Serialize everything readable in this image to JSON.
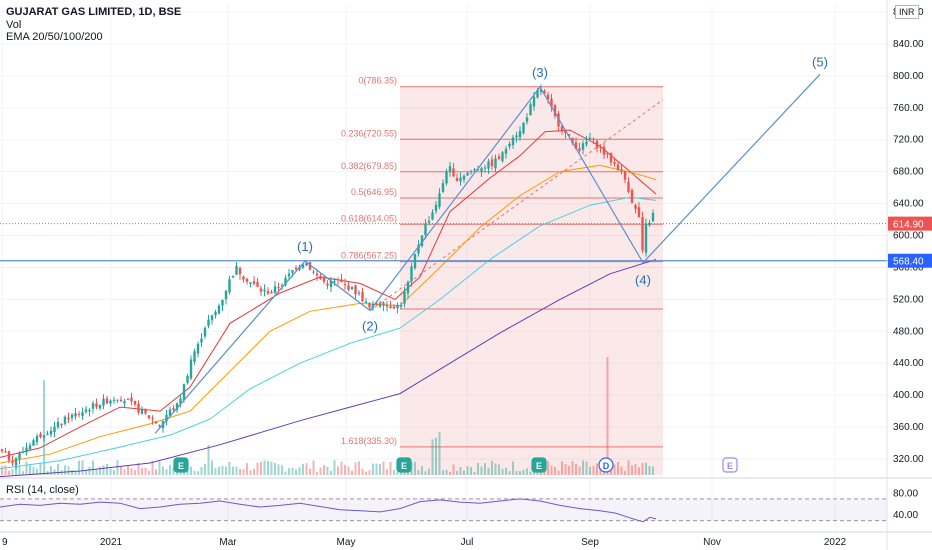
{
  "header": {
    "title": "GUJARAT GAS LIMITED, 1D, BSE",
    "vol": "Vol",
    "ema": "EMA 20/50/100/200",
    "currency": "INR"
  },
  "rsi_label": "RSI (14, close)",
  "colors": {
    "up": "#26a69a",
    "down": "#ef5350",
    "ema20": "#e53935",
    "ema50": "#ff9800",
    "ema100": "#4dd0e1",
    "ema200": "#673ab7",
    "fib": "#e57373",
    "wave": "#5b8fd1",
    "hline": "#5b8fd1",
    "rsi": "#6a5acd"
  },
  "chart_data": {
    "type": "candlestick",
    "ylim": [
      300,
      890
    ],
    "y_ticks": [
      320,
      360,
      400,
      440,
      480,
      520,
      560,
      600,
      640,
      680,
      720,
      760,
      800,
      840,
      880
    ],
    "y_tick_labels": [
      "320.00",
      "360.00",
      "400.00",
      "440.00",
      "480.00",
      "520.00",
      "560.00",
      "600.00",
      "640.00",
      "680.00",
      "720.00",
      "760.00",
      "800.00",
      "840.00",
      "880.00"
    ],
    "x_labels": [
      {
        "label": "9",
        "x": 2
      },
      {
        "label": "2021",
        "x": 111
      },
      {
        "label": "Mar",
        "x": 228
      },
      {
        "label": "May",
        "x": 346
      },
      {
        "label": "Jul",
        "x": 467
      },
      {
        "label": "Sep",
        "x": 590
      },
      {
        "label": "Nov",
        "x": 712
      },
      {
        "label": "2022",
        "x": 835
      }
    ],
    "last_price": {
      "value": 614.9,
      "label": "614.90"
    },
    "level_line": {
      "value": 568.4,
      "label": "568.40"
    },
    "fibonacci": [
      {
        "ratio": "0",
        "price": 786.35,
        "label": "0(786.35)"
      },
      {
        "ratio": "0.236",
        "price": 720.55,
        "label": "0.236(720.55)"
      },
      {
        "ratio": "0.382",
        "price": 679.85,
        "label": "0.382(679.85)"
      },
      {
        "ratio": "0.5",
        "price": 646.95,
        "label": "0.5(646.95)"
      },
      {
        "ratio": "0.618",
        "price": 614.05,
        "label": "0.618(614.05)"
      },
      {
        "ratio": "0.786",
        "price": 567.25,
        "label": "0.786(567.25)"
      },
      {
        "ratio": "1.618",
        "price": 335.3,
        "label": "1.618(335.30)"
      }
    ],
    "fib_extra_line": 508,
    "elliott_waves": [
      {
        "label": "(1)",
        "x": 305,
        "price": 568
      },
      {
        "label": "(2)",
        "x": 370,
        "price": 506
      },
      {
        "label": "(3)",
        "x": 540,
        "price": 786
      },
      {
        "label": "(4)",
        "x": 643,
        "price": 566
      },
      {
        "label": "(5)",
        "x": 820,
        "price": 802
      }
    ],
    "events": [
      {
        "label": "E",
        "x": 181
      },
      {
        "label": "E",
        "x": 404
      },
      {
        "label": "E",
        "x": 539
      },
      {
        "label": "D",
        "x": 606
      },
      {
        "label": "E",
        "x": 730
      }
    ],
    "price_path": [
      [
        0,
        330
      ],
      [
        12,
        318
      ],
      [
        20,
        326
      ],
      [
        30,
        340
      ],
      [
        42,
        352
      ],
      [
        55,
        360
      ],
      [
        68,
        372
      ],
      [
        80,
        378
      ],
      [
        92,
        386
      ],
      [
        104,
        392
      ],
      [
        118,
        398
      ],
      [
        128,
        392
      ],
      [
        140,
        380
      ],
      [
        152,
        370
      ],
      [
        160,
        362
      ],
      [
        168,
        378
      ],
      [
        178,
        388
      ],
      [
        186,
        420
      ],
      [
        192,
        450
      ],
      [
        198,
        462
      ],
      [
        206,
        490
      ],
      [
        214,
        500
      ],
      [
        222,
        520
      ],
      [
        230,
        545
      ],
      [
        236,
        560
      ],
      [
        244,
        548
      ],
      [
        252,
        540
      ],
      [
        262,
        530
      ],
      [
        272,
        530
      ],
      [
        284,
        542
      ],
      [
        295,
        560
      ],
      [
        305,
        568
      ],
      [
        316,
        550
      ],
      [
        326,
        540
      ],
      [
        338,
        542
      ],
      [
        348,
        536
      ],
      [
        360,
        525
      ],
      [
        370,
        508
      ],
      [
        380,
        518
      ],
      [
        390,
        512
      ],
      [
        400,
        512
      ],
      [
        408,
        540
      ],
      [
        416,
        580
      ],
      [
        424,
        610
      ],
      [
        432,
        628
      ],
      [
        440,
        652
      ],
      [
        448,
        690
      ],
      [
        454,
        670
      ],
      [
        462,
        675
      ],
      [
        470,
        680
      ],
      [
        480,
        686
      ],
      [
        492,
        690
      ],
      [
        502,
        700
      ],
      [
        512,
        725
      ],
      [
        520,
        730
      ],
      [
        530,
        760
      ],
      [
        540,
        786
      ],
      [
        548,
        768
      ],
      [
        556,
        745
      ],
      [
        564,
        730
      ],
      [
        572,
        716
      ],
      [
        580,
        708
      ],
      [
        590,
        722
      ],
      [
        598,
        712
      ],
      [
        606,
        700
      ],
      [
        614,
        690
      ],
      [
        622,
        680
      ],
      [
        628,
        660
      ],
      [
        634,
        636
      ],
      [
        640,
        620
      ],
      [
        643,
        570
      ],
      [
        646,
        612
      ],
      [
        652,
        622
      ],
      [
        656,
        640
      ]
    ],
    "ema_series": [
      {
        "name": "EMA 20",
        "color_key": "ema20",
        "points": [
          [
            0,
            322
          ],
          [
            40,
            334
          ],
          [
            80,
            360
          ],
          [
            120,
            385
          ],
          [
            160,
            380
          ],
          [
            190,
            410
          ],
          [
            230,
            490
          ],
          [
            280,
            528
          ],
          [
            320,
            548
          ],
          [
            360,
            540
          ],
          [
            395,
            520
          ],
          [
            420,
            548
          ],
          [
            450,
            630
          ],
          [
            490,
            672
          ],
          [
            520,
            700
          ],
          [
            545,
            730
          ],
          [
            570,
            732
          ],
          [
            600,
            712
          ],
          [
            630,
            680
          ],
          [
            656,
            652
          ]
        ]
      },
      {
        "name": "EMA 50",
        "color_key": "ema50",
        "points": [
          [
            0,
            315
          ],
          [
            50,
            326
          ],
          [
            100,
            348
          ],
          [
            150,
            364
          ],
          [
            190,
            380
          ],
          [
            230,
            430
          ],
          [
            270,
            480
          ],
          [
            310,
            505
          ],
          [
            360,
            515
          ],
          [
            400,
            512
          ],
          [
            440,
            560
          ],
          [
            480,
            610
          ],
          [
            520,
            650
          ],
          [
            560,
            680
          ],
          [
            600,
            688
          ],
          [
            640,
            676
          ],
          [
            656,
            670
          ]
        ]
      },
      {
        "name": "EMA 100",
        "color_key": "ema100",
        "points": [
          [
            0,
            308
          ],
          [
            60,
            318
          ],
          [
            120,
            335
          ],
          [
            170,
            350
          ],
          [
            210,
            370
          ],
          [
            250,
            408
          ],
          [
            300,
            440
          ],
          [
            350,
            465
          ],
          [
            400,
            484
          ],
          [
            440,
            520
          ],
          [
            490,
            570
          ],
          [
            540,
            612
          ],
          [
            590,
            638
          ],
          [
            630,
            648
          ],
          [
            656,
            644
          ]
        ]
      },
      {
        "name": "EMA 200",
        "color_key": "ema200",
        "points": [
          [
            0,
            298
          ],
          [
            80,
            305
          ],
          [
            150,
            315
          ],
          [
            220,
            338
          ],
          [
            300,
            368
          ],
          [
            350,
            385
          ],
          [
            400,
            402
          ],
          [
            450,
            440
          ],
          [
            500,
            478
          ],
          [
            560,
            520
          ],
          [
            610,
            552
          ],
          [
            656,
            570
          ]
        ]
      }
    ],
    "rsi": {
      "ylim": [
        20,
        90
      ],
      "ticks": [
        40,
        80
      ],
      "tick_labels": [
        "40.00",
        "80.00"
      ],
      "band": [
        30,
        70
      ],
      "points": [
        [
          0,
          55
        ],
        [
          20,
          60
        ],
        [
          40,
          58
        ],
        [
          60,
          62
        ],
        [
          80,
          60
        ],
        [
          100,
          64
        ],
        [
          120,
          62
        ],
        [
          140,
          52
        ],
        [
          160,
          55
        ],
        [
          180,
          60
        ],
        [
          200,
          62
        ],
        [
          220,
          66
        ],
        [
          240,
          60
        ],
        [
          260,
          55
        ],
        [
          280,
          58
        ],
        [
          300,
          62
        ],
        [
          320,
          56
        ],
        [
          340,
          50
        ],
        [
          360,
          48
        ],
        [
          380,
          46
        ],
        [
          400,
          52
        ],
        [
          420,
          65
        ],
        [
          440,
          68
        ],
        [
          460,
          64
        ],
        [
          480,
          62
        ],
        [
          500,
          66
        ],
        [
          520,
          70
        ],
        [
          540,
          66
        ],
        [
          560,
          58
        ],
        [
          580,
          52
        ],
        [
          600,
          48
        ],
        [
          615,
          44
        ],
        [
          625,
          38
        ],
        [
          635,
          32
        ],
        [
          643,
          28
        ],
        [
          650,
          36
        ],
        [
          656,
          33
        ]
      ]
    }
  }
}
